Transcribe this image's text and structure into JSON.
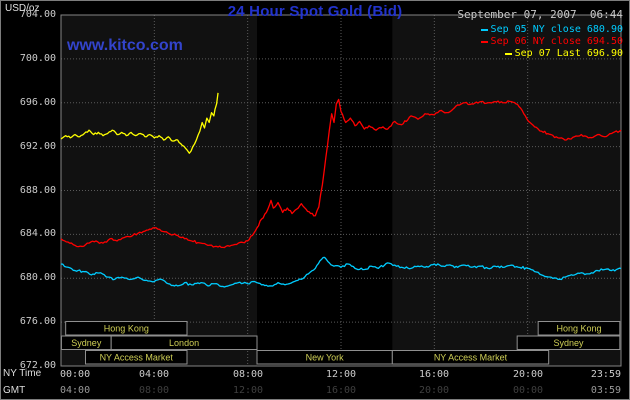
{
  "header": {
    "title": "24 Hour Spot Gold (Bid)",
    "datetime": "September 07, 2007  06:44",
    "watermark": "www.kitco.com"
  },
  "colors": {
    "title": "#2233cc",
    "watermark": "#3344cc",
    "axis_text": "#cccccc",
    "session_text": "#cfcf55"
  },
  "legend": [
    {
      "label": "Sep 05 NY close 680.90",
      "color": "#00ccff"
    },
    {
      "label": "Sep 06 NY close 694.50",
      "color": "#ff0000"
    },
    {
      "label": "Sep 07 Last 696.90",
      "color": "#ffff00"
    }
  ],
  "axes": {
    "units_label": "USD/oz",
    "ny_time_label": "NY Time",
    "gmt_label": "GMT",
    "y_ticks": [
      "704.00",
      "700.00",
      "696.00",
      "692.00",
      "688.00",
      "684.00",
      "680.00",
      "676.00",
      "672.00"
    ],
    "x_ticks": [
      "00:00",
      "04:00",
      "08:00",
      "12:00",
      "16:00",
      "20:00",
      "23:59"
    ],
    "gmt_ticks": [
      "04:00",
      "08:00",
      "12:00",
      "16:00",
      "20:00",
      "00:00",
      "03:59"
    ]
  },
  "sessions": [
    {
      "label": "Hong Kong",
      "row": 0,
      "start": 0.2,
      "end": 5.4
    },
    {
      "label": "Hong Kong",
      "row": 0,
      "start": 20.45,
      "end": 23.95
    },
    {
      "label": "Sydney",
      "row": 1,
      "start": 0.02,
      "end": 2.15
    },
    {
      "label": "London",
      "row": 1,
      "start": 2.15,
      "end": 8.4
    },
    {
      "label": "Sydney",
      "row": 1,
      "start": 19.55,
      "end": 23.95
    },
    {
      "label": "NY Access Market",
      "row": 2,
      "start": 1.05,
      "end": 5.4
    },
    {
      "label": "New York",
      "row": 2,
      "start": 8.4,
      "end": 14.2
    },
    {
      "label": "NY Access Market",
      "row": 2,
      "start": 14.2,
      "end": 20.9
    }
  ],
  "chart_data": {
    "type": "line",
    "title": "24 Hour Spot Gold (Bid)",
    "xlabel": "NY Time (hours)",
    "ylabel": "USD/oz",
    "xlim": [
      0,
      24
    ],
    "ylim": [
      672,
      704
    ],
    "grid": true,
    "plot_bg": "#111111",
    "band_color": "#000000",
    "grid_color": "#5a5a5a",
    "ny_band": [
      8.4,
      14.2
    ],
    "series": [
      {
        "name": "Sep 05",
        "color": "#00ccff",
        "close": 680.9,
        "noise": 0.12,
        "points": [
          [
            0,
            681.3
          ],
          [
            0.3,
            681.0
          ],
          [
            0.6,
            680.7
          ],
          [
            1,
            680.6
          ],
          [
            1.3,
            680.3
          ],
          [
            1.7,
            680.5
          ],
          [
            2,
            680.1
          ],
          [
            2.3,
            679.9
          ],
          [
            2.6,
            680.1
          ],
          [
            3,
            679.9
          ],
          [
            3.3,
            680.1
          ],
          [
            3.6,
            679.8
          ],
          [
            4,
            679.7
          ],
          [
            4.3,
            679.9
          ],
          [
            4.6,
            679.5
          ],
          [
            5,
            679.3
          ],
          [
            5.3,
            679.6
          ],
          [
            5.6,
            679.4
          ],
          [
            6,
            679.6
          ],
          [
            6.3,
            679.3
          ],
          [
            6.6,
            679.5
          ],
          [
            7,
            679.2
          ],
          [
            7.3,
            679.4
          ],
          [
            7.6,
            679.6
          ],
          [
            8,
            679.5
          ],
          [
            8.3,
            679.7
          ],
          [
            8.6,
            679.4
          ],
          [
            9,
            679.3
          ],
          [
            9.3,
            679.6
          ],
          [
            9.6,
            679.4
          ],
          [
            10,
            679.7
          ],
          [
            10.3,
            679.9
          ],
          [
            10.6,
            680.4
          ],
          [
            10.9,
            680.9
          ],
          [
            11.1,
            681.6
          ],
          [
            11.3,
            681.9
          ],
          [
            11.5,
            681.4
          ],
          [
            11.7,
            681.1
          ],
          [
            12,
            681.0
          ],
          [
            12.3,
            681.3
          ],
          [
            12.6,
            680.9
          ],
          [
            13,
            680.8
          ],
          [
            13.3,
            681.1
          ],
          [
            13.6,
            680.9
          ],
          [
            14,
            681.4
          ],
          [
            14.3,
            681.2
          ],
          [
            14.6,
            681.0
          ],
          [
            15,
            680.9
          ],
          [
            15.3,
            681.1
          ],
          [
            15.6,
            681.0
          ],
          [
            16,
            681.3
          ],
          [
            16.3,
            681.1
          ],
          [
            16.6,
            681.2
          ],
          [
            17,
            681.0
          ],
          [
            17.3,
            681.2
          ],
          [
            17.6,
            681.0
          ],
          [
            18,
            681.1
          ],
          [
            18.3,
            680.9
          ],
          [
            18.6,
            681.1
          ],
          [
            19,
            681.0
          ],
          [
            19.3,
            681.2
          ],
          [
            19.6,
            681.0
          ],
          [
            20,
            680.9
          ],
          [
            20.3,
            680.6
          ],
          [
            20.6,
            680.3
          ],
          [
            21,
            680.1
          ],
          [
            21.3,
            679.9
          ],
          [
            21.6,
            680.1
          ],
          [
            22,
            680.3
          ],
          [
            22.3,
            680.5
          ],
          [
            22.6,
            680.4
          ],
          [
            23,
            680.7
          ],
          [
            23.3,
            680.8
          ],
          [
            23.6,
            680.7
          ],
          [
            24,
            680.9
          ]
        ]
      },
      {
        "name": "Sep 06",
        "color": "#ff0000",
        "close": 694.5,
        "noise": 0.12,
        "points": [
          [
            0,
            683.6
          ],
          [
            0.3,
            683.3
          ],
          [
            0.6,
            683.0
          ],
          [
            0.9,
            682.9
          ],
          [
            1.2,
            683.2
          ],
          [
            1.5,
            683.4
          ],
          [
            1.8,
            683.2
          ],
          [
            2.1,
            683.6
          ],
          [
            2.4,
            683.4
          ],
          [
            2.7,
            683.7
          ],
          [
            3,
            683.8
          ],
          [
            3.3,
            684.1
          ],
          [
            3.6,
            684.3
          ],
          [
            4,
            684.6
          ],
          [
            4.3,
            684.3
          ],
          [
            4.6,
            684.1
          ],
          [
            5,
            683.9
          ],
          [
            5.3,
            683.6
          ],
          [
            5.6,
            683.4
          ],
          [
            6,
            683.2
          ],
          [
            6.3,
            683.0
          ],
          [
            6.6,
            682.9
          ],
          [
            7,
            682.8
          ],
          [
            7.3,
            683.0
          ],
          [
            7.6,
            683.2
          ],
          [
            8,
            683.4
          ],
          [
            8.2,
            683.9
          ],
          [
            8.4,
            684.6
          ],
          [
            8.6,
            685.4
          ],
          [
            8.8,
            686.0
          ],
          [
            9,
            687.1
          ],
          [
            9.1,
            686.4
          ],
          [
            9.3,
            686.9
          ],
          [
            9.5,
            686.0
          ],
          [
            9.7,
            686.4
          ],
          [
            9.9,
            685.9
          ],
          [
            10.1,
            686.3
          ],
          [
            10.3,
            686.8
          ],
          [
            10.5,
            686.3
          ],
          [
            10.7,
            685.9
          ],
          [
            10.9,
            685.7
          ],
          [
            11.05,
            686.5
          ],
          [
            11.2,
            688.5
          ],
          [
            11.35,
            691.0
          ],
          [
            11.5,
            693.5
          ],
          [
            11.6,
            695.0
          ],
          [
            11.7,
            694.2
          ],
          [
            11.8,
            695.9
          ],
          [
            11.9,
            696.3
          ],
          [
            12,
            695.2
          ],
          [
            12.2,
            694.2
          ],
          [
            12.4,
            694.6
          ],
          [
            12.6,
            693.9
          ],
          [
            12.8,
            694.3
          ],
          [
            13,
            693.6
          ],
          [
            13.2,
            693.9
          ],
          [
            13.5,
            693.5
          ],
          [
            13.8,
            693.8
          ],
          [
            14,
            693.6
          ],
          [
            14.3,
            694.3
          ],
          [
            14.6,
            694.0
          ],
          [
            15,
            694.8
          ],
          [
            15.3,
            694.5
          ],
          [
            15.6,
            695.0
          ],
          [
            16,
            694.9
          ],
          [
            16.3,
            695.3
          ],
          [
            16.6,
            695.1
          ],
          [
            17,
            695.8
          ],
          [
            17.3,
            696.0
          ],
          [
            17.6,
            695.9
          ],
          [
            18,
            696.1
          ],
          [
            18.3,
            696.0
          ],
          [
            18.6,
            696.1
          ],
          [
            19,
            696.0
          ],
          [
            19.3,
            696.1
          ],
          [
            19.5,
            695.9
          ],
          [
            19.7,
            695.5
          ],
          [
            19.9,
            694.8
          ],
          [
            20.1,
            694.2
          ],
          [
            20.3,
            693.8
          ],
          [
            20.6,
            693.4
          ],
          [
            21,
            693.1
          ],
          [
            21.3,
            692.8
          ],
          [
            21.6,
            692.6
          ],
          [
            22,
            692.9
          ],
          [
            22.3,
            693.1
          ],
          [
            22.6,
            692.8
          ],
          [
            23,
            693.1
          ],
          [
            23.3,
            692.9
          ],
          [
            23.6,
            693.2
          ],
          [
            24,
            693.5
          ]
        ]
      },
      {
        "name": "Sep 07",
        "color": "#ffff00",
        "last": 696.9,
        "noise": 0.1,
        "points": [
          [
            0,
            692.7
          ],
          [
            0.2,
            693.0
          ],
          [
            0.4,
            692.8
          ],
          [
            0.6,
            693.1
          ],
          [
            0.8,
            692.9
          ],
          [
            1,
            693.2
          ],
          [
            1.2,
            693.5
          ],
          [
            1.4,
            693.1
          ],
          [
            1.6,
            693.3
          ],
          [
            1.8,
            693.0
          ],
          [
            2,
            693.2
          ],
          [
            2.2,
            693.5
          ],
          [
            2.4,
            693.1
          ],
          [
            2.6,
            693.3
          ],
          [
            2.8,
            693.0
          ],
          [
            3,
            693.3
          ],
          [
            3.2,
            693.0
          ],
          [
            3.4,
            693.2
          ],
          [
            3.6,
            692.9
          ],
          [
            3.8,
            693.1
          ],
          [
            4,
            692.8
          ],
          [
            4.2,
            693.0
          ],
          [
            4.4,
            692.6
          ],
          [
            4.6,
            692.9
          ],
          [
            4.8,
            692.5
          ],
          [
            5,
            692.6
          ],
          [
            5.2,
            692.1
          ],
          [
            5.4,
            691.7
          ],
          [
            5.5,
            691.4
          ],
          [
            5.65,
            692.0
          ],
          [
            5.8,
            692.6
          ],
          [
            5.95,
            693.4
          ],
          [
            6.05,
            694.2
          ],
          [
            6.15,
            693.7
          ],
          [
            6.25,
            694.6
          ],
          [
            6.35,
            694.2
          ],
          [
            6.45,
            695.1
          ],
          [
            6.55,
            694.8
          ],
          [
            6.6,
            695.4
          ],
          [
            6.67,
            695.9
          ],
          [
            6.73,
            696.9
          ]
        ]
      }
    ]
  }
}
